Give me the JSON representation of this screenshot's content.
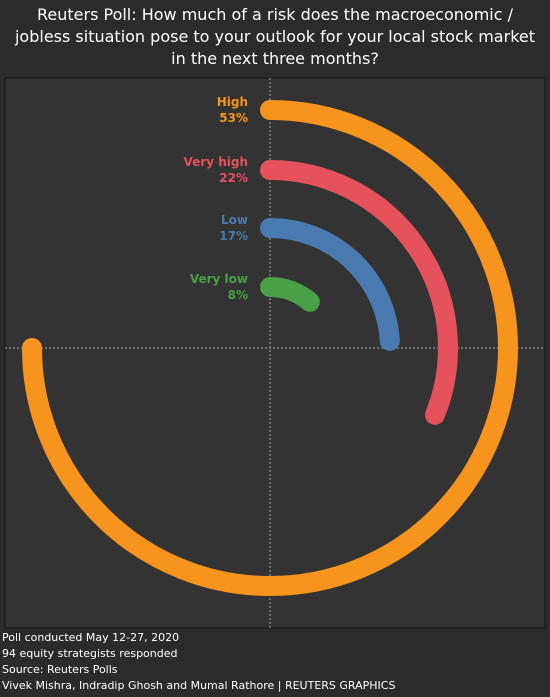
{
  "chart_data": {
    "type": "radial-bar",
    "title": "Reuters Poll: How much of a risk does the macroeconomic / jobless situation pose to your outlook for your local stock market in the next three months?",
    "categories": [
      "High",
      "Very high",
      "Low",
      "Very low"
    ],
    "values": [
      53,
      22,
      17,
      8
    ],
    "value_labels": [
      "53%",
      "22%",
      "17%",
      "8%"
    ],
    "colors": [
      "#f7941d",
      "#e5525b",
      "#4a7bb0",
      "#4aa046"
    ]
  },
  "footer": {
    "lines": [
      "Poll conducted May 12-27, 2020",
      "94 equity strategists responded",
      "Source: Reuters Polls",
      "Vivek Mishra, Indradip Ghosh and Mumal Rathore | REUTERS GRAPHICS"
    ]
  }
}
